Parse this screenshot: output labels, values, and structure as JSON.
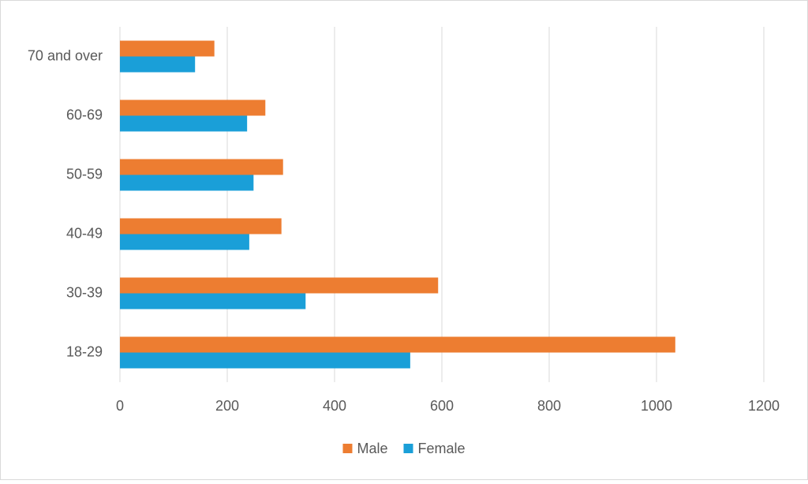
{
  "chart_data": {
    "type": "hbar",
    "categories": [
      "18-29",
      "30-39",
      "40-49",
      "50-59",
      "60-69",
      "70 and over"
    ],
    "series": [
      {
        "name": "Male",
        "color": "#ed7d31",
        "values": [
          1035,
          593,
          301,
          304,
          271,
          176
        ]
      },
      {
        "name": "Female",
        "color": "#1a9fd8",
        "values": [
          541,
          346,
          241,
          249,
          237,
          140
        ]
      }
    ],
    "xlim": [
      0,
      1200
    ],
    "xticks": [
      0,
      200,
      400,
      600,
      800,
      1000,
      1200
    ],
    "grid": true,
    "legend": "bottom"
  }
}
